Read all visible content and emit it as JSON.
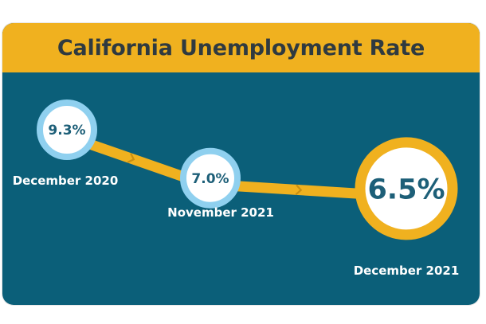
{
  "chart_data": {
    "type": "line",
    "title": "California Unemployment Rate",
    "categories": [
      "December 2020",
      "November 2021",
      "December 2021"
    ],
    "values": [
      9.3,
      7.0,
      6.5
    ],
    "value_labels": [
      "9.3%",
      "7.0%",
      "6.5%"
    ],
    "unit": "%",
    "highlight_index": 2
  },
  "colors": {
    "header_bg": "#f0b11f",
    "panel_bg": "#0b5f79",
    "connector": "#f0b11f",
    "ring_blue": "#8fd0ef",
    "ring_gold": "#f0b11f",
    "circle_fill": "#ffffff",
    "value_text": "#1d5f78",
    "label_text": "#ffffff",
    "title_text": "#2f3a40"
  }
}
